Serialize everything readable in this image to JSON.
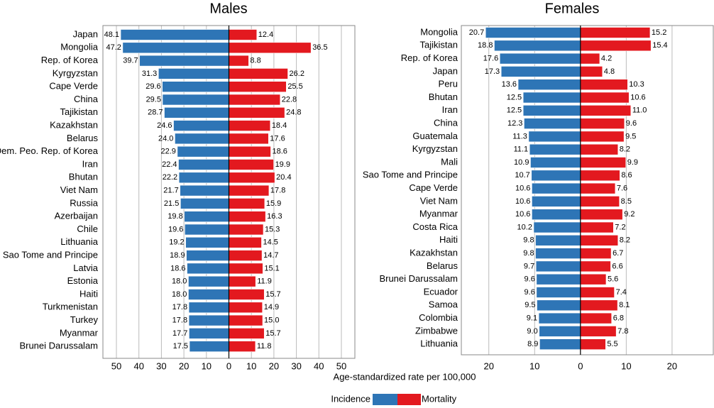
{
  "chart_data": [
    {
      "type": "butterfly",
      "title": "Males",
      "categories": [
        "Japan",
        "Mongolia",
        "Rep. of Korea",
        "Kyrgyzstan",
        "Cape Verde",
        "China",
        "Tajikistan",
        "Kazakhstan",
        "Belarus",
        "Dem. Peo. Rep. of Korea",
        "Iran",
        "Bhutan",
        "Viet Nam",
        "Russia",
        "Azerbaijan",
        "Chile",
        "Lithuania",
        "Sao Tome and Principe",
        "Latvia",
        "Estonia",
        "Haiti",
        "Turkmenistan",
        "Turkey",
        "Myanmar",
        "Brunei Darussalam"
      ],
      "series": [
        {
          "name": "Incidence",
          "color": "#2e75b6",
          "values": [
            48.1,
            47.2,
            39.7,
            31.3,
            29.6,
            29.5,
            28.7,
            24.6,
            24.0,
            22.9,
            22.4,
            22.2,
            21.7,
            21.5,
            19.8,
            19.6,
            19.2,
            18.9,
            18.6,
            18.0,
            18.0,
            17.8,
            17.8,
            17.7,
            17.5
          ],
          "value_labels": [
            "48.1",
            "47.2",
            "39.7",
            "31.3",
            "29.6",
            "29.5",
            "28.7",
            "24.6",
            "24.0",
            "22.9",
            "22.4",
            "22.2",
            "21.7",
            "21.5",
            "19.8",
            "19.6",
            "19.2",
            "18.9",
            "18.6",
            "18.0",
            "18.0",
            "17.8",
            "17.8",
            "17.7",
            "17.5"
          ]
        },
        {
          "name": "Mortality",
          "color": "#e3191f",
          "values": [
            12.4,
            36.5,
            8.8,
            26.2,
            25.5,
            22.8,
            24.8,
            18.4,
            17.6,
            18.6,
            19.9,
            20.4,
            17.8,
            15.9,
            16.3,
            15.3,
            14.5,
            14.7,
            15.1,
            11.9,
            15.7,
            14.9,
            15.0,
            15.7,
            11.8
          ],
          "value_labels": [
            "12.4",
            "36.5",
            "8.8",
            "26.2",
            "25.5",
            "22.8",
            "24.8",
            "18.4",
            "17.6",
            "18.6",
            "19.9",
            "20.4",
            "17.8",
            "15.9",
            "16.3",
            "15.3",
            "14.5",
            "14.7",
            "15.1",
            "11.9",
            "15.7",
            "14.9",
            "15.0",
            "15.7",
            "11.8"
          ]
        }
      ],
      "xlim": [
        -56,
        56
      ],
      "xticks": [
        {
          "value": -50,
          "label": "50"
        },
        {
          "value": -40,
          "label": "40"
        },
        {
          "value": -30,
          "label": "30"
        },
        {
          "value": -20,
          "label": "20"
        },
        {
          "value": -10,
          "label": "10"
        },
        0,
        10,
        20,
        30,
        40,
        50
      ]
    },
    {
      "type": "butterfly",
      "title": "Females",
      "categories": [
        "Mongolia",
        "Tajikistan",
        "Rep. of Korea",
        "Japan",
        "Peru",
        "Bhutan",
        "Iran",
        "China",
        "Guatemala",
        "Kyrgyzstan",
        "Mali",
        "Sao Tome and Principe",
        "Cape Verde",
        "Viet Nam",
        "Myanmar",
        "Costa Rica",
        "Haiti",
        "Kazakhstan",
        "Belarus",
        "Brunei Darussalam",
        "Ecuador",
        "Samoa",
        "Colombia",
        "Zimbabwe",
        "Lithuania"
      ],
      "series": [
        {
          "name": "Incidence",
          "color": "#2e75b6",
          "values": [
            20.7,
            18.8,
            17.6,
            17.3,
            13.6,
            12.5,
            12.5,
            12.3,
            11.3,
            11.1,
            10.9,
            10.7,
            10.6,
            10.6,
            10.6,
            10.2,
            9.8,
            9.8,
            9.7,
            9.6,
            9.6,
            9.5,
            9.1,
            9.0,
            8.9
          ],
          "value_labels": [
            "20.7",
            "18.8",
            "17.6",
            "17.3",
            "13.6",
            "12.5",
            "12.5",
            "12.3",
            "11.3",
            "11.1",
            "10.9",
            "10.7",
            "10.6",
            "10.6",
            "10.6",
            "10.2",
            "9.8",
            "9.8",
            "9.7",
            "9.6",
            "9.6",
            "9.5",
            "9.1",
            "9.0",
            "8.9"
          ]
        },
        {
          "name": "Mortality",
          "color": "#e3191f",
          "values": [
            15.2,
            15.4,
            4.2,
            4.8,
            10.3,
            10.6,
            11.0,
            9.6,
            9.5,
            8.2,
            9.9,
            8.6,
            7.6,
            8.5,
            9.2,
            7.2,
            8.2,
            6.7,
            6.6,
            5.6,
            7.4,
            8.1,
            6.8,
            7.8,
            5.5
          ],
          "value_labels": [
            "15.2",
            "15.4",
            "4.2",
            "4.8",
            "10.3",
            "10.6",
            "11.0",
            "9.6",
            "9.5",
            "8.2",
            "9.9",
            "8.6",
            "7.6",
            "8.5",
            "9.2",
            "7.2",
            "8.2",
            "6.7",
            "6.6",
            "5.6",
            "7.4",
            "8.1",
            "6.8",
            "7.8",
            "5.5"
          ]
        }
      ],
      "xlim": [
        -26,
        29
      ],
      "xticks": [
        {
          "value": -20,
          "label": "20"
        },
        {
          "value": -10,
          "label": "10"
        },
        0,
        10,
        20
      ]
    }
  ],
  "x_label": "Age-standardized rate per 100,000"
}
